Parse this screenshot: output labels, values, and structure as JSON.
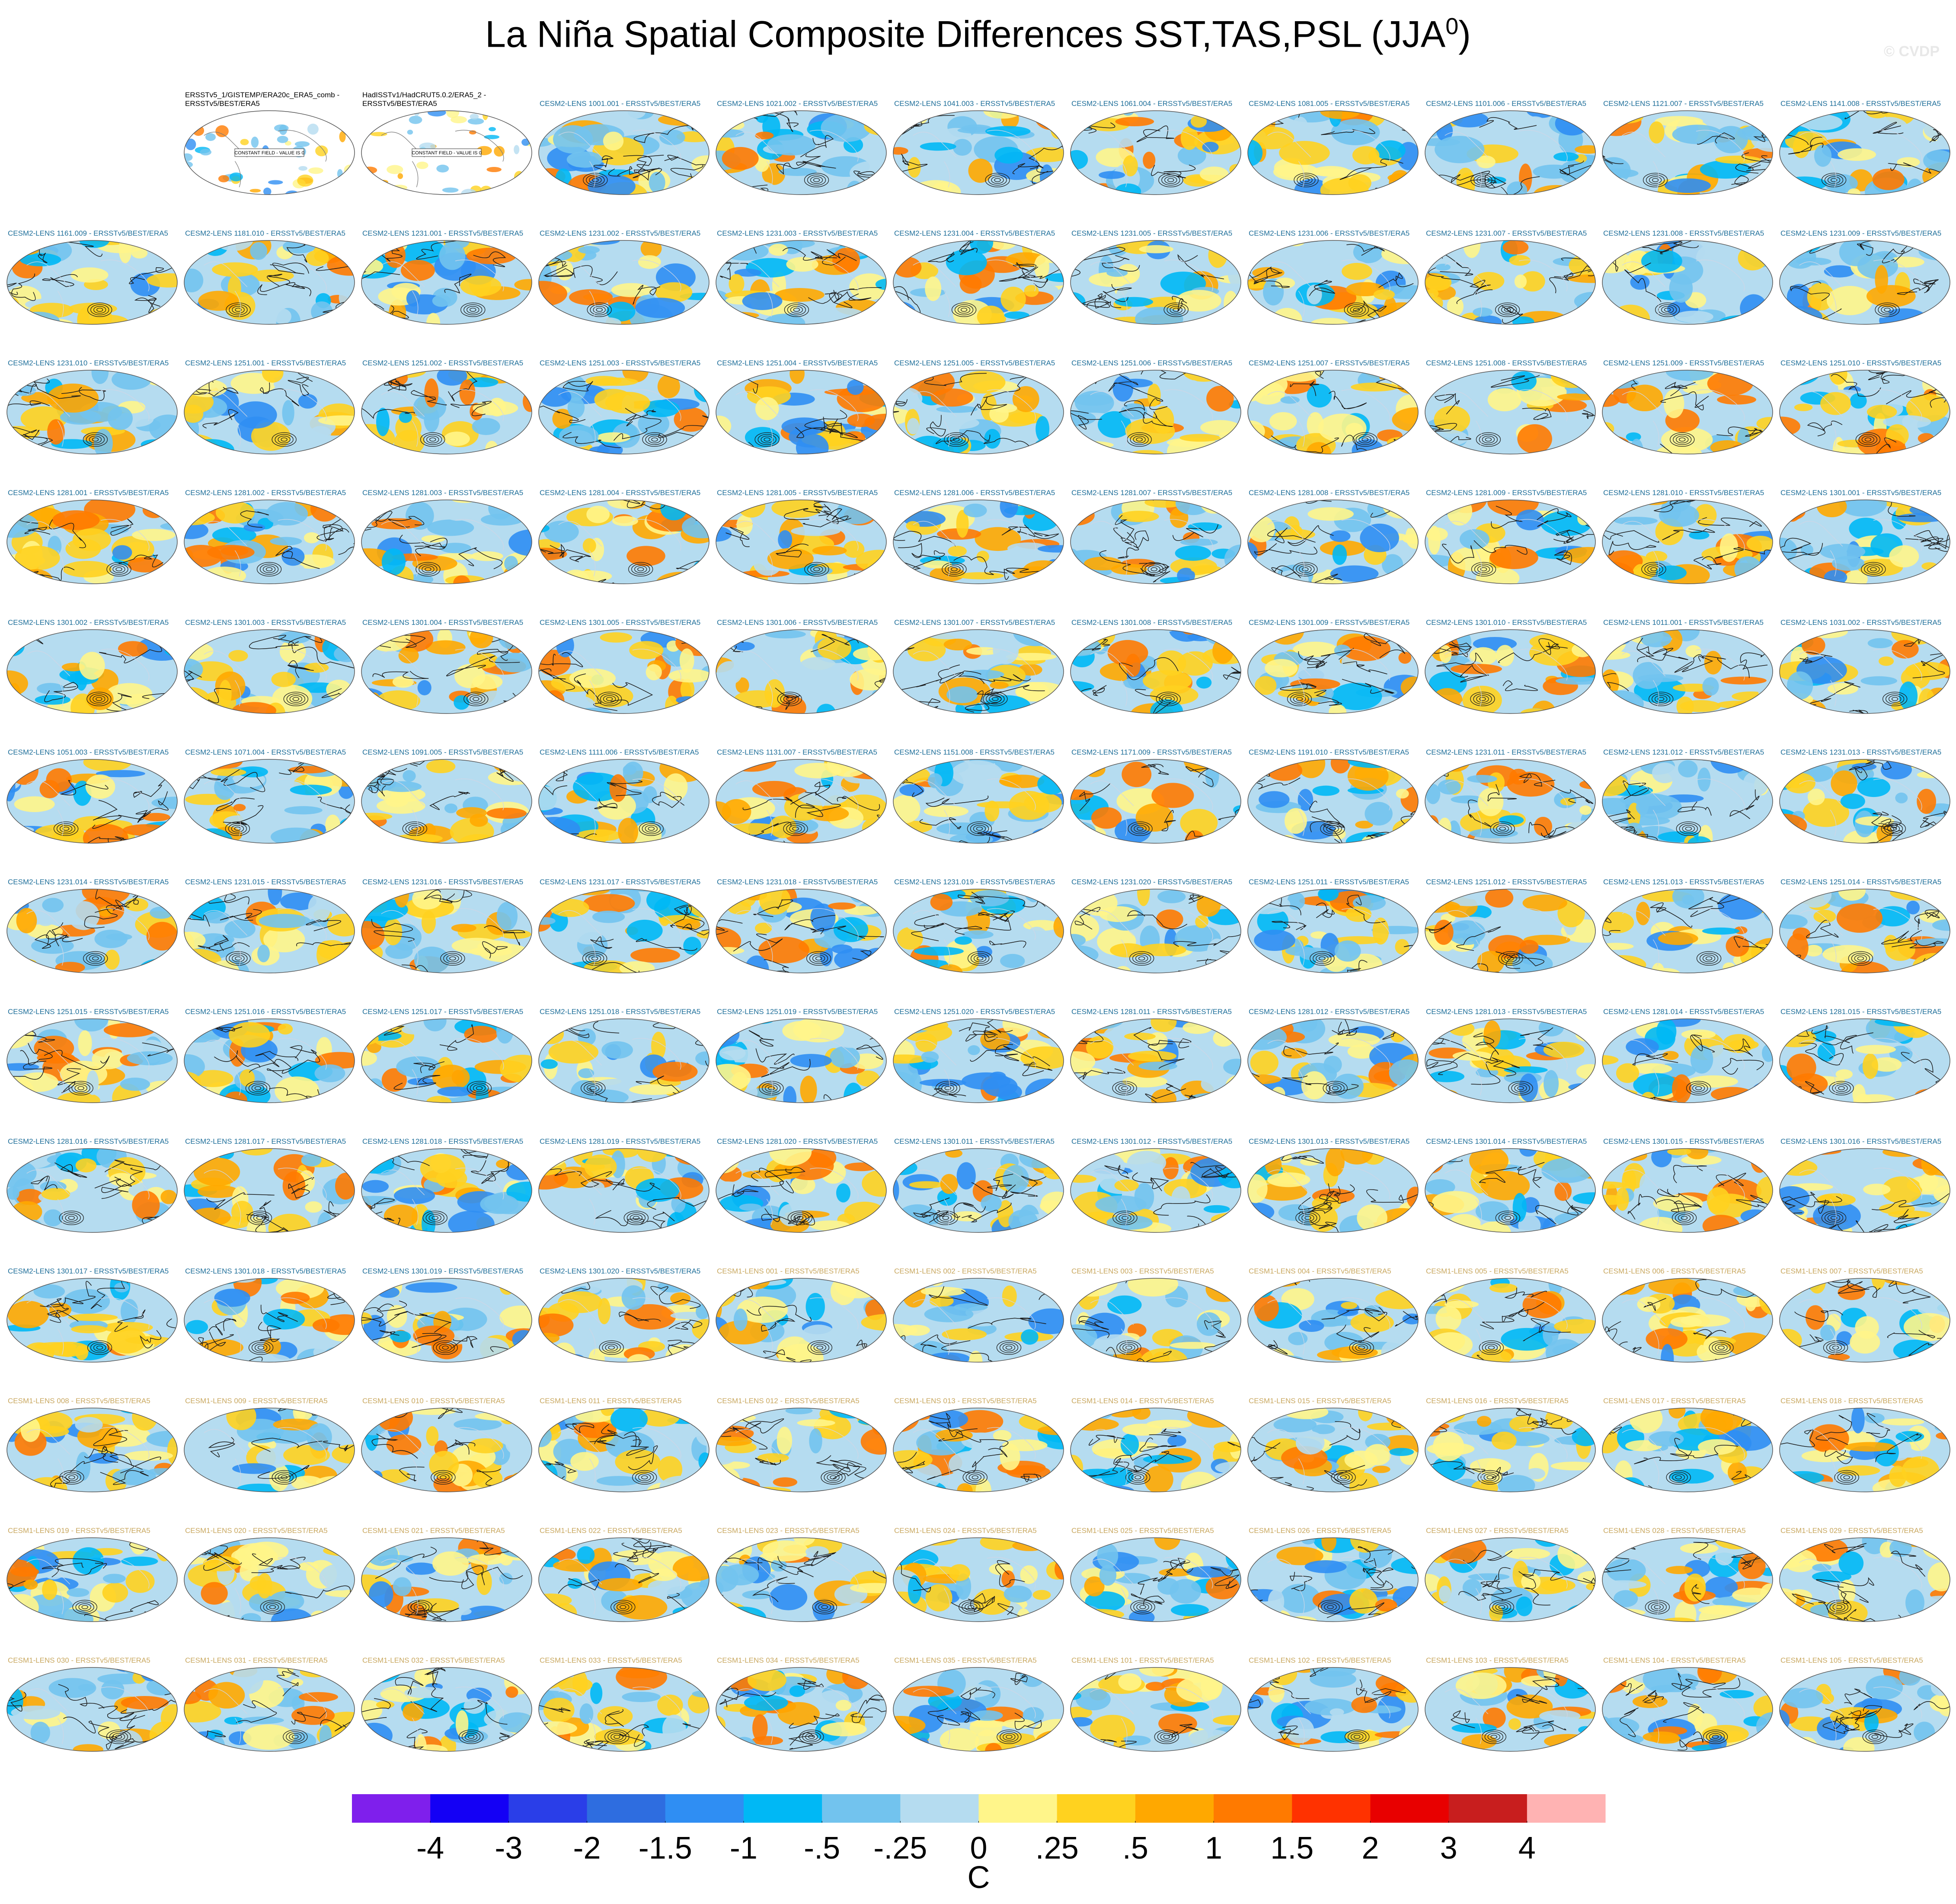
{
  "title": "La Niña Spatial Composite Differences SST,TAS,PSL (JJA",
  "title_superscript": "0",
  "title_end": ")",
  "watermark": "© CVDP",
  "panels": [
    [
      null,
      {
        "label": "ERSSTv5_1/GISTEMP/ERA20c_ERA5_comb - ERSSTv5/BEST/ERA5",
        "color": "#000000",
        "note": "CONSTANT FIELD - VALUE IS 0"
      },
      {
        "label": "HadISSTv1/HadCRUT5.0.2/ERA5_2 - ERSSTv5/BEST/ERA5",
        "color": "#000000",
        "note": "CONSTANT FIELD - VALUE IS 0"
      },
      {
        "label": "CESM2-LENS 1001.001 - ERSSTv5/BEST/ERA5",
        "color": "#1f6f9a"
      },
      {
        "label": "CESM2-LENS 1021.002 - ERSSTv5/BEST/ERA5",
        "color": "#1f6f9a"
      },
      {
        "label": "CESM2-LENS 1041.003 - ERSSTv5/BEST/ERA5",
        "color": "#1f6f9a"
      },
      {
        "label": "CESM2-LENS 1061.004 - ERSSTv5/BEST/ERA5",
        "color": "#1f6f9a"
      },
      {
        "label": "CESM2-LENS 1081.005 - ERSSTv5/BEST/ERA5",
        "color": "#1f6f9a"
      },
      {
        "label": "CESM2-LENS 1101.006 - ERSSTv5/BEST/ERA5",
        "color": "#1f6f9a"
      },
      {
        "label": "CESM2-LENS 1121.007 - ERSSTv5/BEST/ERA5",
        "color": "#1f6f9a"
      },
      {
        "label": "CESM2-LENS 1141.008 - ERSSTv5/BEST/ERA5",
        "color": "#1f6f9a"
      }
    ],
    [
      {
        "label": "CESM2-LENS 1161.009 - ERSSTv5/BEST/ERA5",
        "color": "#1f6f9a"
      },
      {
        "label": "CESM2-LENS 1181.010 - ERSSTv5/BEST/ERA5",
        "color": "#1f6f9a"
      },
      {
        "label": "CESM2-LENS 1231.001 - ERSSTv5/BEST/ERA5",
        "color": "#1f6f9a"
      },
      {
        "label": "CESM2-LENS 1231.002 - ERSSTv5/BEST/ERA5",
        "color": "#1f6f9a"
      },
      {
        "label": "CESM2-LENS 1231.003 - ERSSTv5/BEST/ERA5",
        "color": "#1f6f9a"
      },
      {
        "label": "CESM2-LENS 1231.004 - ERSSTv5/BEST/ERA5",
        "color": "#1f6f9a"
      },
      {
        "label": "CESM2-LENS 1231.005 - ERSSTv5/BEST/ERA5",
        "color": "#1f6f9a"
      },
      {
        "label": "CESM2-LENS 1231.006 - ERSSTv5/BEST/ERA5",
        "color": "#1f6f9a"
      },
      {
        "label": "CESM2-LENS 1231.007 - ERSSTv5/BEST/ERA5",
        "color": "#1f6f9a"
      },
      {
        "label": "CESM2-LENS 1231.008 - ERSSTv5/BEST/ERA5",
        "color": "#1f6f9a"
      },
      {
        "label": "CESM2-LENS 1231.009 - ERSSTv5/BEST/ERA5",
        "color": "#1f6f9a"
      }
    ],
    [
      {
        "label": "CESM2-LENS 1231.010 - ERSSTv5/BEST/ERA5",
        "color": "#1f6f9a"
      },
      {
        "label": "CESM2-LENS 1251.001 - ERSSTv5/BEST/ERA5",
        "color": "#1f6f9a"
      },
      {
        "label": "CESM2-LENS 1251.002 - ERSSTv5/BEST/ERA5",
        "color": "#1f6f9a"
      },
      {
        "label": "CESM2-LENS 1251.003 - ERSSTv5/BEST/ERA5",
        "color": "#1f6f9a"
      },
      {
        "label": "CESM2-LENS 1251.004 - ERSSTv5/BEST/ERA5",
        "color": "#1f6f9a"
      },
      {
        "label": "CESM2-LENS 1251.005 - ERSSTv5/BEST/ERA5",
        "color": "#1f6f9a"
      },
      {
        "label": "CESM2-LENS 1251.006 - ERSSTv5/BEST/ERA5",
        "color": "#1f6f9a"
      },
      {
        "label": "CESM2-LENS 1251.007 - ERSSTv5/BEST/ERA5",
        "color": "#1f6f9a"
      },
      {
        "label": "CESM2-LENS 1251.008 - ERSSTv5/BEST/ERA5",
        "color": "#1f6f9a"
      },
      {
        "label": "CESM2-LENS 1251.009 - ERSSTv5/BEST/ERA5",
        "color": "#1f6f9a"
      },
      {
        "label": "CESM2-LENS 1251.010 - ERSSTv5/BEST/ERA5",
        "color": "#1f6f9a"
      }
    ],
    [
      {
        "label": "CESM2-LENS 1281.001 - ERSSTv5/BEST/ERA5",
        "color": "#1f6f9a"
      },
      {
        "label": "CESM2-LENS 1281.002 - ERSSTv5/BEST/ERA5",
        "color": "#1f6f9a"
      },
      {
        "label": "CESM2-LENS 1281.003 - ERSSTv5/BEST/ERA5",
        "color": "#1f6f9a"
      },
      {
        "label": "CESM2-LENS 1281.004 - ERSSTv5/BEST/ERA5",
        "color": "#1f6f9a"
      },
      {
        "label": "CESM2-LENS 1281.005 - ERSSTv5/BEST/ERA5",
        "color": "#1f6f9a"
      },
      {
        "label": "CESM2-LENS 1281.006 - ERSSTv5/BEST/ERA5",
        "color": "#1f6f9a"
      },
      {
        "label": "CESM2-LENS 1281.007 - ERSSTv5/BEST/ERA5",
        "color": "#1f6f9a"
      },
      {
        "label": "CESM2-LENS 1281.008 - ERSSTv5/BEST/ERA5",
        "color": "#1f6f9a"
      },
      {
        "label": "CESM2-LENS 1281.009 - ERSSTv5/BEST/ERA5",
        "color": "#1f6f9a"
      },
      {
        "label": "CESM2-LENS 1281.010 - ERSSTv5/BEST/ERA5",
        "color": "#1f6f9a"
      },
      {
        "label": "CESM2-LENS 1301.001 - ERSSTv5/BEST/ERA5",
        "color": "#1f6f9a"
      }
    ],
    [
      {
        "label": "CESM2-LENS 1301.002 - ERSSTv5/BEST/ERA5",
        "color": "#1f6f9a"
      },
      {
        "label": "CESM2-LENS 1301.003 - ERSSTv5/BEST/ERA5",
        "color": "#1f6f9a"
      },
      {
        "label": "CESM2-LENS 1301.004 - ERSSTv5/BEST/ERA5",
        "color": "#1f6f9a"
      },
      {
        "label": "CESM2-LENS 1301.005 - ERSSTv5/BEST/ERA5",
        "color": "#1f6f9a"
      },
      {
        "label": "CESM2-LENS 1301.006 - ERSSTv5/BEST/ERA5",
        "color": "#1f6f9a"
      },
      {
        "label": "CESM2-LENS 1301.007 - ERSSTv5/BEST/ERA5",
        "color": "#1f6f9a"
      },
      {
        "label": "CESM2-LENS 1301.008 - ERSSTv5/BEST/ERA5",
        "color": "#1f6f9a"
      },
      {
        "label": "CESM2-LENS 1301.009 - ERSSTv5/BEST/ERA5",
        "color": "#1f6f9a"
      },
      {
        "label": "CESM2-LENS 1301.010 - ERSSTv5/BEST/ERA5",
        "color": "#1f6f9a"
      },
      {
        "label": "CESM2-LENS 1011.001 - ERSSTv5/BEST/ERA5",
        "color": "#1f6f9a"
      },
      {
        "label": "CESM2-LENS 1031.002 - ERSSTv5/BEST/ERA5",
        "color": "#1f6f9a"
      }
    ],
    [
      {
        "label": "CESM2-LENS 1051.003 - ERSSTv5/BEST/ERA5",
        "color": "#1f6f9a"
      },
      {
        "label": "CESM2-LENS 1071.004 - ERSSTv5/BEST/ERA5",
        "color": "#1f6f9a"
      },
      {
        "label": "CESM2-LENS 1091.005 - ERSSTv5/BEST/ERA5",
        "color": "#1f6f9a"
      },
      {
        "label": "CESM2-LENS 1111.006 - ERSSTv5/BEST/ERA5",
        "color": "#1f6f9a"
      },
      {
        "label": "CESM2-LENS 1131.007 - ERSSTv5/BEST/ERA5",
        "color": "#1f6f9a"
      },
      {
        "label": "CESM2-LENS 1151.008 - ERSSTv5/BEST/ERA5",
        "color": "#1f6f9a"
      },
      {
        "label": "CESM2-LENS 1171.009 - ERSSTv5/BEST/ERA5",
        "color": "#1f6f9a"
      },
      {
        "label": "CESM2-LENS 1191.010 - ERSSTv5/BEST/ERA5",
        "color": "#1f6f9a"
      },
      {
        "label": "CESM2-LENS 1231.011 - ERSSTv5/BEST/ERA5",
        "color": "#1f6f9a"
      },
      {
        "label": "CESM2-LENS 1231.012 - ERSSTv5/BEST/ERA5",
        "color": "#1f6f9a"
      },
      {
        "label": "CESM2-LENS 1231.013 - ERSSTv5/BEST/ERA5",
        "color": "#1f6f9a"
      }
    ],
    [
      {
        "label": "CESM2-LENS 1231.014 - ERSSTv5/BEST/ERA5",
        "color": "#1f6f9a"
      },
      {
        "label": "CESM2-LENS 1231.015 - ERSSTv5/BEST/ERA5",
        "color": "#1f6f9a"
      },
      {
        "label": "CESM2-LENS 1231.016 - ERSSTv5/BEST/ERA5",
        "color": "#1f6f9a"
      },
      {
        "label": "CESM2-LENS 1231.017 - ERSSTv5/BEST/ERA5",
        "color": "#1f6f9a"
      },
      {
        "label": "CESM2-LENS 1231.018 - ERSSTv5/BEST/ERA5",
        "color": "#1f6f9a"
      },
      {
        "label": "CESM2-LENS 1231.019 - ERSSTv5/BEST/ERA5",
        "color": "#1f6f9a"
      },
      {
        "label": "CESM2-LENS 1231.020 - ERSSTv5/BEST/ERA5",
        "color": "#1f6f9a"
      },
      {
        "label": "CESM2-LENS 1251.011 - ERSSTv5/BEST/ERA5",
        "color": "#1f6f9a"
      },
      {
        "label": "CESM2-LENS 1251.012 - ERSSTv5/BEST/ERA5",
        "color": "#1f6f9a"
      },
      {
        "label": "CESM2-LENS 1251.013 - ERSSTv5/BEST/ERA5",
        "color": "#1f6f9a"
      },
      {
        "label": "CESM2-LENS 1251.014 - ERSSTv5/BEST/ERA5",
        "color": "#1f6f9a"
      }
    ],
    [
      {
        "label": "CESM2-LENS 1251.015 - ERSSTv5/BEST/ERA5",
        "color": "#1f6f9a"
      },
      {
        "label": "CESM2-LENS 1251.016 - ERSSTv5/BEST/ERA5",
        "color": "#1f6f9a"
      },
      {
        "label": "CESM2-LENS 1251.017 - ERSSTv5/BEST/ERA5",
        "color": "#1f6f9a"
      },
      {
        "label": "CESM2-LENS 1251.018 - ERSSTv5/BEST/ERA5",
        "color": "#1f6f9a"
      },
      {
        "label": "CESM2-LENS 1251.019 - ERSSTv5/BEST/ERA5",
        "color": "#1f6f9a"
      },
      {
        "label": "CESM2-LENS 1251.020 - ERSSTv5/BEST/ERA5",
        "color": "#1f6f9a"
      },
      {
        "label": "CESM2-LENS 1281.011 - ERSSTv5/BEST/ERA5",
        "color": "#1f6f9a"
      },
      {
        "label": "CESM2-LENS 1281.012 - ERSSTv5/BEST/ERA5",
        "color": "#1f6f9a"
      },
      {
        "label": "CESM2-LENS 1281.013 - ERSSTv5/BEST/ERA5",
        "color": "#1f6f9a"
      },
      {
        "label": "CESM2-LENS 1281.014 - ERSSTv5/BEST/ERA5",
        "color": "#1f6f9a"
      },
      {
        "label": "CESM2-LENS 1281.015 - ERSSTv5/BEST/ERA5",
        "color": "#1f6f9a"
      }
    ],
    [
      {
        "label": "CESM2-LENS 1281.016 - ERSSTv5/BEST/ERA5",
        "color": "#1f6f9a"
      },
      {
        "label": "CESM2-LENS 1281.017 - ERSSTv5/BEST/ERA5",
        "color": "#1f6f9a"
      },
      {
        "label": "CESM2-LENS 1281.018 - ERSSTv5/BEST/ERA5",
        "color": "#1f6f9a"
      },
      {
        "label": "CESM2-LENS 1281.019 - ERSSTv5/BEST/ERA5",
        "color": "#1f6f9a"
      },
      {
        "label": "CESM2-LENS 1281.020 - ERSSTv5/BEST/ERA5",
        "color": "#1f6f9a"
      },
      {
        "label": "CESM2-LENS 1301.011 - ERSSTv5/BEST/ERA5",
        "color": "#1f6f9a"
      },
      {
        "label": "CESM2-LENS 1301.012 - ERSSTv5/BEST/ERA5",
        "color": "#1f6f9a"
      },
      {
        "label": "CESM2-LENS 1301.013 - ERSSTv5/BEST/ERA5",
        "color": "#1f6f9a"
      },
      {
        "label": "CESM2-LENS 1301.014 - ERSSTv5/BEST/ERA5",
        "color": "#1f6f9a"
      },
      {
        "label": "CESM2-LENS 1301.015 - ERSSTv5/BEST/ERA5",
        "color": "#1f6f9a"
      },
      {
        "label": "CESM2-LENS 1301.016 - ERSSTv5/BEST/ERA5",
        "color": "#1f6f9a"
      }
    ],
    [
      {
        "label": "CESM2-LENS 1301.017 - ERSSTv5/BEST/ERA5",
        "color": "#1f6f9a"
      },
      {
        "label": "CESM2-LENS 1301.018 - ERSSTv5/BEST/ERA5",
        "color": "#1f6f9a"
      },
      {
        "label": "CESM2-LENS 1301.019 - ERSSTv5/BEST/ERA5",
        "color": "#1f6f9a"
      },
      {
        "label": "CESM2-LENS 1301.020 - ERSSTv5/BEST/ERA5",
        "color": "#1f6f9a"
      },
      {
        "label": "CESM1-LENS 001 - ERSSTv5/BEST/ERA5",
        "color": "#c9a860"
      },
      {
        "label": "CESM1-LENS 002 - ERSSTv5/BEST/ERA5",
        "color": "#c9a860"
      },
      {
        "label": "CESM1-LENS 003 - ERSSTv5/BEST/ERA5",
        "color": "#c9a860"
      },
      {
        "label": "CESM1-LENS 004 - ERSSTv5/BEST/ERA5",
        "color": "#c9a860"
      },
      {
        "label": "CESM1-LENS 005 - ERSSTv5/BEST/ERA5",
        "color": "#c9a860"
      },
      {
        "label": "CESM1-LENS 006 - ERSSTv5/BEST/ERA5",
        "color": "#c9a860"
      },
      {
        "label": "CESM1-LENS 007 - ERSSTv5/BEST/ERA5",
        "color": "#c9a860"
      }
    ],
    [
      {
        "label": "CESM1-LENS 008 - ERSSTv5/BEST/ERA5",
        "color": "#c9a860"
      },
      {
        "label": "CESM1-LENS 009 - ERSSTv5/BEST/ERA5",
        "color": "#c9a860"
      },
      {
        "label": "CESM1-LENS 010 - ERSSTv5/BEST/ERA5",
        "color": "#c9a860"
      },
      {
        "label": "CESM1-LENS 011 - ERSSTv5/BEST/ERA5",
        "color": "#c9a860"
      },
      {
        "label": "CESM1-LENS 012 - ERSSTv5/BEST/ERA5",
        "color": "#c9a860"
      },
      {
        "label": "CESM1-LENS 013 - ERSSTv5/BEST/ERA5",
        "color": "#c9a860"
      },
      {
        "label": "CESM1-LENS 014 - ERSSTv5/BEST/ERA5",
        "color": "#c9a860"
      },
      {
        "label": "CESM1-LENS 015 - ERSSTv5/BEST/ERA5",
        "color": "#c9a860"
      },
      {
        "label": "CESM1-LENS 016 - ERSSTv5/BEST/ERA5",
        "color": "#c9a860"
      },
      {
        "label": "CESM1-LENS 017 - ERSSTv5/BEST/ERA5",
        "color": "#c9a860"
      },
      {
        "label": "CESM1-LENS 018 - ERSSTv5/BEST/ERA5",
        "color": "#c9a860"
      }
    ],
    [
      {
        "label": "CESM1-LENS 019 - ERSSTv5/BEST/ERA5",
        "color": "#c9a860"
      },
      {
        "label": "CESM1-LENS 020 - ERSSTv5/BEST/ERA5",
        "color": "#c9a860"
      },
      {
        "label": "CESM1-LENS 021 - ERSSTv5/BEST/ERA5",
        "color": "#c9a860"
      },
      {
        "label": "CESM1-LENS 022 - ERSSTv5/BEST/ERA5",
        "color": "#c9a860"
      },
      {
        "label": "CESM1-LENS 023 - ERSSTv5/BEST/ERA5",
        "color": "#c9a860"
      },
      {
        "label": "CESM1-LENS 024 - ERSSTv5/BEST/ERA5",
        "color": "#c9a860"
      },
      {
        "label": "CESM1-LENS 025 - ERSSTv5/BEST/ERA5",
        "color": "#c9a860"
      },
      {
        "label": "CESM1-LENS 026 - ERSSTv5/BEST/ERA5",
        "color": "#c9a860"
      },
      {
        "label": "CESM1-LENS 027 - ERSSTv5/BEST/ERA5",
        "color": "#c9a860"
      },
      {
        "label": "CESM1-LENS 028 - ERSSTv5/BEST/ERA5",
        "color": "#c9a860"
      },
      {
        "label": "CESM1-LENS 029 - ERSSTv5/BEST/ERA5",
        "color": "#c9a860"
      }
    ],
    [
      {
        "label": "CESM1-LENS 030 - ERSSTv5/BEST/ERA5",
        "color": "#c9a860"
      },
      {
        "label": "CESM1-LENS 031 - ERSSTv5/BEST/ERA5",
        "color": "#c9a860"
      },
      {
        "label": "CESM1-LENS 032 - ERSSTv5/BEST/ERA5",
        "color": "#c9a860"
      },
      {
        "label": "CESM1-LENS 033 - ERSSTv5/BEST/ERA5",
        "color": "#c9a860"
      },
      {
        "label": "CESM1-LENS 034 - ERSSTv5/BEST/ERA5",
        "color": "#c9a860"
      },
      {
        "label": "CESM1-LENS 035 - ERSSTv5/BEST/ERA5",
        "color": "#c9a860"
      },
      {
        "label": "CESM1-LENS 101 - ERSSTv5/BEST/ERA5",
        "color": "#c9a860"
      },
      {
        "label": "CESM1-LENS 102 - ERSSTv5/BEST/ERA5",
        "color": "#c9a860"
      },
      {
        "label": "CESM1-LENS 103 - ERSSTv5/BEST/ERA5",
        "color": "#c9a860"
      },
      {
        "label": "CESM1-LENS 104 - ERSSTv5/BEST/ERA5",
        "color": "#c9a860"
      },
      {
        "label": "CESM1-LENS 105 - ERSSTv5/BEST/ERA5",
        "color": "#c9a860"
      }
    ]
  ],
  "colorbar": {
    "colors": [
      "#7f1fec",
      "#1400f5",
      "#2a3ee8",
      "#2e6de0",
      "#2f8ef3",
      "#00b8f5",
      "#72c3ee",
      "#b5dcf0",
      "#fff58a",
      "#ffd21f",
      "#ffa800",
      "#ff7a00",
      "#ff3200",
      "#e80000",
      "#c81e1e",
      "#ffb3b3"
    ],
    "ticks": [
      -4,
      -3,
      -2,
      -1.5,
      -1,
      {
        "value": -0.5,
        "label": "-.5"
      },
      {
        "value": -0.25,
        "label": "-.25"
      },
      0,
      {
        "value": 0.25,
        "label": ".25"
      },
      {
        "value": 0.5,
        "label": ".5"
      },
      1,
      1.5,
      2,
      3,
      4
    ],
    "unit": "C"
  }
}
